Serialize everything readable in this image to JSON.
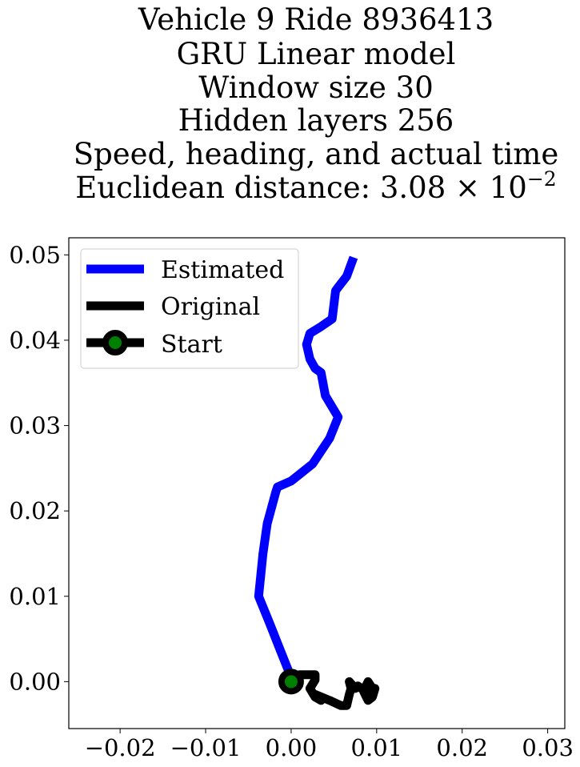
{
  "chart_data": {
    "type": "line",
    "title_lines": [
      "Vehicle 9 Ride 8936413",
      "GRU Linear model",
      "Window size 30",
      "Hidden layers 256",
      "Speed, heading, and actual time",
      "Euclidean distance: 3.08 × 10"
    ],
    "title_exponent": "−2",
    "xlim": [
      -0.026,
      0.032
    ],
    "ylim": [
      -0.0055,
      0.052
    ],
    "xticks": [
      -0.02,
      -0.01,
      0.0,
      0.01,
      0.02,
      0.03
    ],
    "xtick_labels": [
      "−0.02",
      "−0.01",
      "0.00",
      "0.01",
      "0.02",
      "0.03"
    ],
    "yticks": [
      0.0,
      0.01,
      0.02,
      0.03,
      0.04,
      0.05
    ],
    "ytick_labels": [
      "0.00",
      "0.01",
      "0.02",
      "0.03",
      "0.04",
      "0.05"
    ],
    "legend_position": "top-left",
    "series": [
      {
        "name": "Estimated",
        "color": "#0000ff",
        "x": [
          0.0,
          -0.0012,
          -0.0025,
          -0.0038,
          -0.0033,
          -0.0028,
          -0.0018,
          -0.0016,
          0.0,
          0.0025,
          0.0045,
          0.0055,
          0.004,
          0.0035,
          0.0028,
          0.0022,
          0.0018,
          0.0022,
          0.0035,
          0.0048,
          0.0052,
          0.0055,
          0.0065,
          0.0073
        ],
        "y": [
          0.0005,
          0.0035,
          0.0068,
          0.01,
          0.015,
          0.0185,
          0.0222,
          0.0228,
          0.0235,
          0.0255,
          0.0285,
          0.031,
          0.0335,
          0.0362,
          0.0367,
          0.0378,
          0.0395,
          0.0408,
          0.0416,
          0.0425,
          0.0458,
          0.0462,
          0.0475,
          0.0497
        ]
      },
      {
        "name": "Original",
        "color": "#000000",
        "x": [
          0.0,
          0.001,
          0.002,
          0.0028,
          0.0028,
          0.0022,
          0.0028,
          0.0035,
          0.0028,
          0.0045,
          0.0058,
          0.0065,
          0.0068,
          0.007,
          0.0068,
          0.0075,
          0.0078,
          0.0085,
          0.009,
          0.0095,
          0.0092,
          0.0088,
          0.0093,
          0.0098,
          0.0095,
          0.009,
          0.0085,
          0.0088
        ],
        "y": [
          0.0,
          0.0008,
          0.0008,
          0.0008,
          0.0002,
          -0.0008,
          -0.0018,
          -0.0022,
          -0.0015,
          -0.0022,
          -0.0028,
          -0.0028,
          -0.0015,
          -0.0008,
          0.0,
          -0.0008,
          -0.0005,
          -0.001,
          0.0,
          -0.0008,
          -0.0015,
          -0.001,
          -0.0012,
          -0.0008,
          -0.0018,
          -0.0022,
          -0.0012,
          -0.0005
        ]
      }
    ],
    "start": {
      "name": "Start",
      "x": 0.0,
      "y": 0.0,
      "edge_color": "#000000",
      "face_color": "#008000"
    }
  }
}
